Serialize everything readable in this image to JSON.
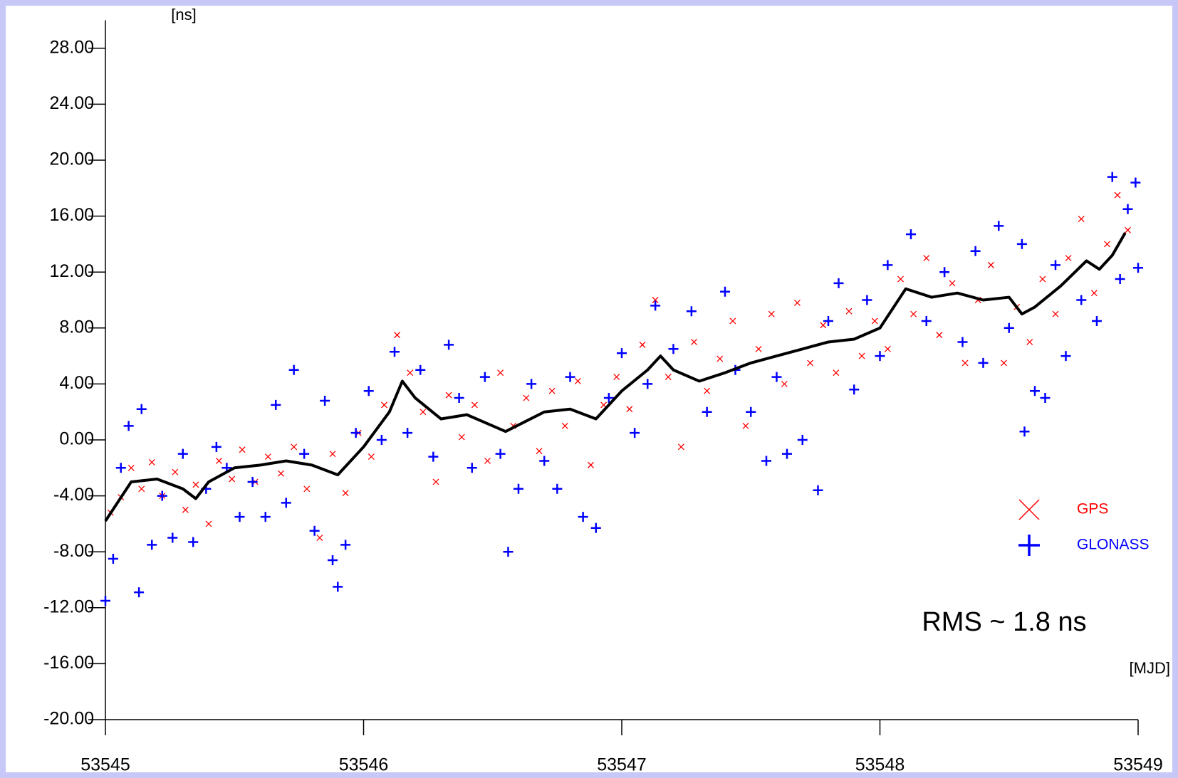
{
  "chart_data": {
    "type": "scatter",
    "annotation": "RMS ~ 1.8 ns",
    "y_label": "[ns]",
    "x_label": "[MJD]",
    "xlim": [
      53545,
      53549
    ],
    "xticks": [
      53545,
      53546,
      53547,
      53548,
      53549
    ],
    "ylim": [
      -20,
      30
    ],
    "yticks": [
      {
        "value": -20,
        "label": "-20.00"
      },
      {
        "value": -16,
        "label": "-16.00"
      },
      {
        "value": -12,
        "label": "-12.00"
      },
      {
        "value": -8,
        "label": "-8.00"
      },
      {
        "value": -4,
        "label": "-4.00"
      },
      {
        "value": 0,
        "label": "0.00"
      },
      {
        "value": 4,
        "label": "4.00"
      },
      {
        "value": 8,
        "label": "8.00"
      },
      {
        "value": 12,
        "label": "12.00"
      },
      {
        "value": 16,
        "label": "16.00"
      },
      {
        "value": 20,
        "label": "20.00"
      },
      {
        "value": 24,
        "label": "24.00"
      },
      {
        "value": 28,
        "label": "28.00"
      }
    ],
    "legend": "right",
    "series": [
      {
        "name": "GPS",
        "color": "#ff0000",
        "marker": "x",
        "x": [
          53545.02,
          53545.06,
          53545.1,
          53545.14,
          53545.18,
          53545.22,
          53545.27,
          53545.31,
          53545.35,
          53545.4,
          53545.44,
          53545.49,
          53545.53,
          53545.58,
          53545.63,
          53545.68,
          53545.73,
          53545.78,
          53545.83,
          53545.88,
          53545.93,
          53545.98,
          53546.03,
          53546.08,
          53546.13,
          53546.18,
          53546.23,
          53546.28,
          53546.33,
          53546.38,
          53546.43,
          53546.48,
          53546.53,
          53546.58,
          53546.63,
          53546.68,
          53546.73,
          53546.78,
          53546.83,
          53546.88,
          53546.93,
          53546.98,
          53547.03,
          53547.08,
          53547.13,
          53547.18,
          53547.23,
          53547.28,
          53547.33,
          53547.38,
          53547.43,
          53547.48,
          53547.53,
          53547.58,
          53547.63,
          53547.68,
          53547.73,
          53547.78,
          53547.83,
          53547.88,
          53547.93,
          53547.98,
          53548.03,
          53548.08,
          53548.13,
          53548.18,
          53548.23,
          53548.28,
          53548.33,
          53548.38,
          53548.43,
          53548.48,
          53548.53,
          53548.58,
          53548.63,
          53548.68,
          53548.73,
          53548.78,
          53548.83,
          53548.88,
          53548.92,
          53548.96
        ],
        "values": [
          -5.2,
          -4.1,
          -2.0,
          -3.5,
          -1.6,
          -4.0,
          -2.3,
          -5.0,
          -3.2,
          -6.0,
          -1.5,
          -2.8,
          -0.7,
          -3.0,
          -1.2,
          -2.4,
          -0.5,
          -3.5,
          -7.0,
          -1.0,
          -3.8,
          0.5,
          -1.2,
          2.5,
          7.5,
          4.8,
          2.0,
          -3.0,
          3.2,
          0.2,
          2.5,
          -1.5,
          4.8,
          1.0,
          3.0,
          -0.8,
          3.5,
          1.0,
          4.2,
          -1.8,
          2.5,
          4.5,
          2.2,
          6.8,
          10.0,
          4.5,
          -0.5,
          7.0,
          3.5,
          5.8,
          8.5,
          1.0,
          6.5,
          9.0,
          4.0,
          9.8,
          5.5,
          8.2,
          4.8,
          9.2,
          6.0,
          8.5,
          6.5,
          11.5,
          9.0,
          13.0,
          7.5,
          11.2,
          5.5,
          10.0,
          12.5,
          5.5,
          9.5,
          7.0,
          11.5,
          9.0,
          13.0,
          15.8,
          10.5,
          14.0,
          17.5,
          15.0
        ]
      },
      {
        "name": "GLONASS",
        "color": "#0000ff",
        "marker": "+",
        "x": [
          53545.0,
          53545.03,
          53545.06,
          53545.09,
          53545.13,
          53545.14,
          53545.18,
          53545.22,
          53545.26,
          53545.3,
          53545.34,
          53545.39,
          53545.43,
          53545.47,
          53545.52,
          53545.57,
          53545.62,
          53545.66,
          53545.7,
          53545.73,
          53545.77,
          53545.81,
          53545.85,
          53545.88,
          53545.9,
          53545.93,
          53545.97,
          53546.02,
          53546.07,
          53546.12,
          53546.17,
          53546.22,
          53546.27,
          53546.33,
          53546.37,
          53546.42,
          53546.47,
          53546.53,
          53546.56,
          53546.6,
          53546.65,
          53546.7,
          53546.75,
          53546.8,
          53546.85,
          53546.9,
          53546.95,
          53547.0,
          53547.05,
          53547.1,
          53547.13,
          53547.2,
          53547.27,
          53547.33,
          53547.4,
          53547.44,
          53547.5,
          53547.56,
          53547.6,
          53547.64,
          53547.7,
          53547.76,
          53547.8,
          53547.84,
          53547.9,
          53547.95,
          53548.0,
          53548.03,
          53548.12,
          53548.18,
          53548.25,
          53548.32,
          53548.37,
          53548.4,
          53548.46,
          53548.5,
          53548.55,
          53548.56,
          53548.6,
          53548.64,
          53548.68,
          53548.72,
          53548.78,
          53548.84,
          53548.9,
          53548.93,
          53548.96,
          53548.99,
          53549.0
        ],
        "values": [
          -11.5,
          -8.5,
          -2.0,
          1.0,
          -10.9,
          2.2,
          -7.5,
          -4.0,
          -7.0,
          -1.0,
          -7.3,
          -3.5,
          -0.5,
          -2.0,
          -5.5,
          -3.0,
          -5.5,
          2.5,
          -4.5,
          5.0,
          -1.0,
          -6.5,
          2.8,
          -8.6,
          -10.5,
          -7.5,
          0.5,
          3.5,
          0.0,
          6.3,
          0.5,
          5.0,
          -1.2,
          6.8,
          3.0,
          -2.0,
          4.5,
          -1.0,
          -8.0,
          -3.5,
          4.0,
          -1.5,
          -3.5,
          4.5,
          -5.5,
          -6.3,
          3.0,
          6.2,
          0.5,
          4.0,
          9.6,
          6.5,
          9.2,
          2.0,
          10.6,
          5.0,
          2.0,
          -1.5,
          4.5,
          -1.0,
          0.0,
          -3.6,
          8.5,
          11.2,
          3.6,
          10.0,
          6.0,
          12.5,
          14.7,
          8.5,
          12.0,
          7.0,
          13.5,
          5.5,
          15.3,
          8.0,
          14.0,
          0.6,
          3.5,
          3.0,
          12.5,
          6.0,
          10.0,
          8.5,
          18.8,
          11.5,
          16.5,
          18.4,
          12.3
        ]
      },
      {
        "color": "#000000",
        "marker": "line",
        "x": [
          53545,
          53545.1,
          53545.2,
          53545.3,
          53545.35,
          53545.4,
          53545.5,
          53545.6,
          53545.7,
          53545.8,
          53545.9,
          53546.0,
          53546.1,
          53546.15,
          53546.2,
          53546.3,
          53546.4,
          53546.5,
          53546.55,
          53546.7,
          53546.8,
          53546.9,
          53547.0,
          53547.1,
          53547.15,
          53547.2,
          53547.3,
          53547.4,
          53547.5,
          53547.6,
          53547.7,
          53547.8,
          53547.9,
          53548.0,
          53548.1,
          53548.2,
          53548.3,
          53548.4,
          53548.5,
          53548.55,
          53548.6,
          53548.7,
          53548.8,
          53548.85,
          53548.9,
          53548.95
        ],
        "values": [
          -5.8,
          -3.0,
          -2.8,
          -3.5,
          -4.2,
          -3.0,
          -2.0,
          -1.8,
          -1.5,
          -1.8,
          -2.5,
          -0.5,
          2.0,
          4.2,
          3.0,
          1.5,
          1.8,
          1.0,
          0.6,
          2.0,
          2.2,
          1.5,
          3.5,
          5.0,
          6.0,
          5.0,
          4.2,
          4.8,
          5.5,
          6.0,
          6.5,
          7.0,
          7.2,
          8.0,
          10.8,
          10.2,
          10.5,
          10.0,
          10.2,
          9.0,
          9.5,
          11.0,
          12.8,
          12.2,
          13.2,
          14.8
        ]
      }
    ]
  }
}
